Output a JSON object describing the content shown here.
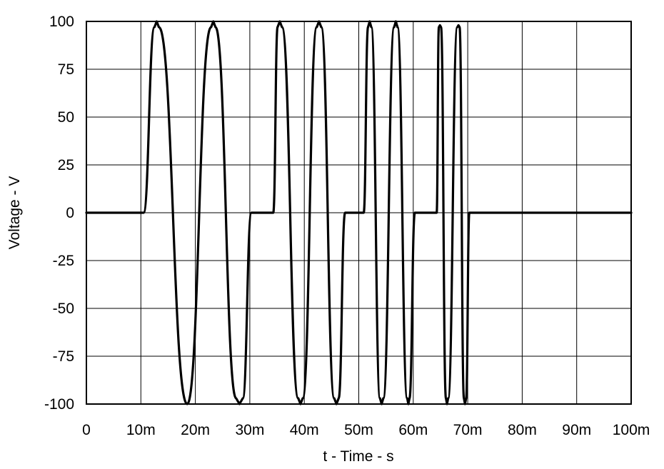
{
  "chart_data": {
    "type": "line",
    "title": "",
    "xlabel": "t - Time - s",
    "ylabel": "Voltage - V",
    "xlim": [
      0,
      0.1
    ],
    "ylim": [
      -100,
      100
    ],
    "grid": true,
    "x_ticks": [
      0,
      0.01,
      0.02,
      0.03,
      0.04,
      0.05,
      0.06,
      0.07,
      0.08,
      0.09,
      0.1
    ],
    "x_tick_labels": [
      "0",
      "10m",
      "20m",
      "30m",
      "40m",
      "50m",
      "60m",
      "70m",
      "80m",
      "90m",
      "100m"
    ],
    "y_ticks": [
      100,
      75,
      50,
      25,
      0,
      -25,
      -50,
      -75,
      -100
    ],
    "y_tick_labels": [
      "100",
      "75",
      "50",
      "25",
      "0",
      "-25",
      "-50",
      "-75",
      "-100"
    ],
    "line_color": "#000000",
    "series": [
      {
        "x": [
          0,
          0.0105,
          0.0125,
          0.0129,
          0.0133,
          0.0185,
          0.0229,
          0.0233,
          0.0237,
          0.0275,
          0.0281,
          0.0287,
          0.0303,
          0.0343,
          0.0351,
          0.0355,
          0.0359,
          0.0389,
          0.0393,
          0.0397,
          0.0423,
          0.0427,
          0.0431,
          0.0455,
          0.0459,
          0.0463,
          0.0475,
          0.0509,
          0.0517,
          0.052,
          0.0523,
          0.0539,
          0.0542,
          0.0545,
          0.0565,
          0.0568,
          0.0571,
          0.0589,
          0.0591,
          0.0593,
          0.0603,
          0.0643,
          0.0647,
          0.0649,
          0.0651,
          0.066,
          0.0662,
          0.0664,
          0.0681,
          0.0683,
          0.0685,
          0.0693,
          0.0695,
          0.0697,
          0.0703,
          0.1
        ],
        "y": [
          0,
          0,
          97,
          100,
          97,
          -100,
          97,
          100,
          97,
          -97,
          -100,
          -97,
          0,
          0,
          97,
          100,
          97,
          -97,
          -100,
          -97,
          97,
          100,
          97,
          -97,
          -100,
          -97,
          0,
          0,
          97,
          100,
          97,
          -97,
          -100,
          -97,
          97,
          100,
          97,
          -97,
          -100,
          -97,
          0,
          0,
          97,
          98,
          97,
          -97,
          -100,
          -97,
          97,
          98,
          97,
          -97,
          -100,
          -97,
          0,
          0
        ]
      }
    ]
  }
}
